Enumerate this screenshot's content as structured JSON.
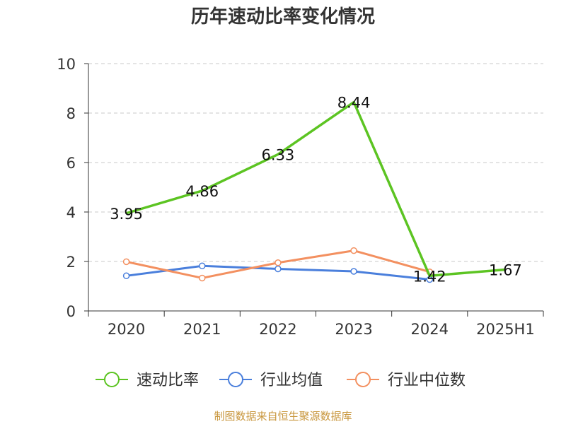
{
  "chart_data": {
    "type": "line",
    "title": "历年速动比率变化情况",
    "categories": [
      "2020",
      "2021",
      "2022",
      "2023",
      "2024",
      "2025H1"
    ],
    "y_ticks": [
      "0",
      "2",
      "4",
      "6",
      "8",
      "10"
    ],
    "ylim": [
      0,
      10
    ],
    "grid": "horizontal dashed",
    "legend_position": "bottom",
    "series": [
      {
        "name": "速动比率",
        "color": "#5cc422",
        "values": [
          3.95,
          4.86,
          6.33,
          8.44,
          1.42,
          1.67
        ],
        "labels": [
          "3.95",
          "4.86",
          "6.33",
          "8.44",
          "1.42",
          "1.67"
        ],
        "points_visible": [
          false,
          false,
          false,
          false,
          false,
          false
        ]
      },
      {
        "name": "行业均值",
        "color": "#4a7fdc",
        "values": [
          1.42,
          1.82,
          1.7,
          1.6,
          1.27,
          null
        ],
        "points_visible": [
          true,
          true,
          true,
          true,
          true,
          false
        ]
      },
      {
        "name": "行业中位数",
        "color": "#f39060",
        "values": [
          1.99,
          1.33,
          1.95,
          2.44,
          1.58,
          null
        ],
        "points_visible": [
          true,
          true,
          true,
          true,
          true,
          false
        ]
      }
    ]
  },
  "source_text": "制图数据来自恒生聚源数据库"
}
